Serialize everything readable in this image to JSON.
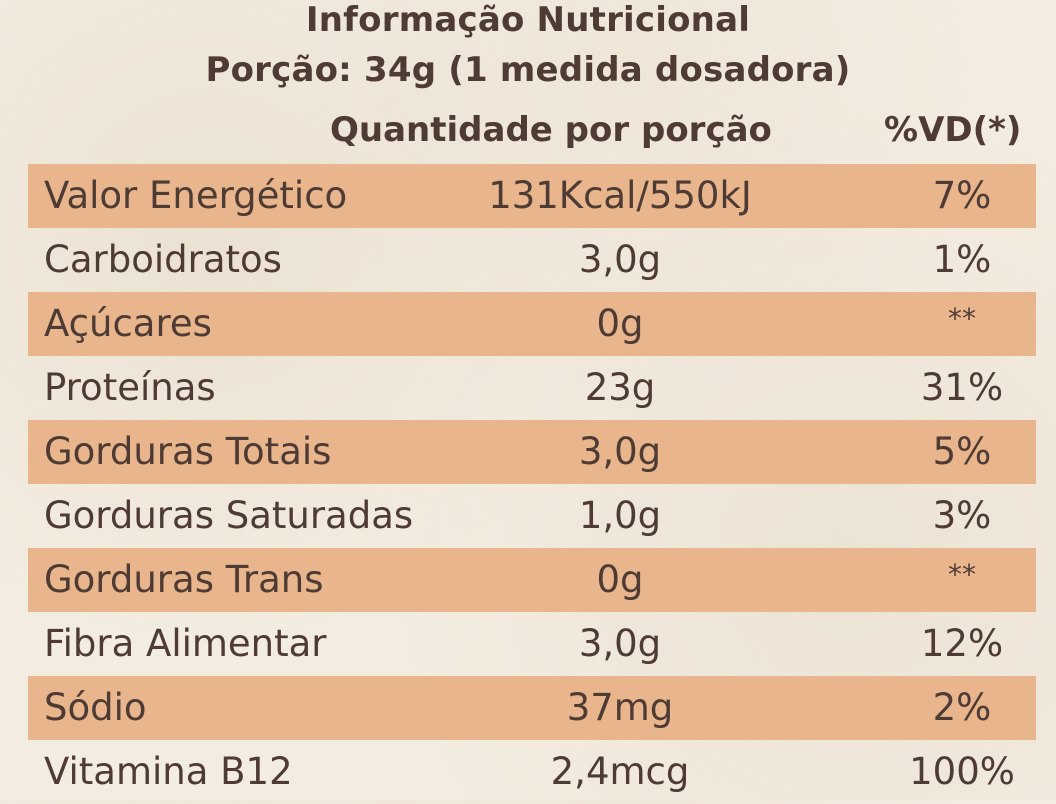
{
  "header": {
    "title_line_1": "Informação Nutricional",
    "title_line_2": "Porção: 34g (1 medida dosadora)",
    "quantity_heading": "Quantidade por porção",
    "vd_heading": "%VD(*)"
  },
  "colors": {
    "background": "#f3ece0",
    "band": "#e8b58c",
    "text": "#4d3b34"
  },
  "rows": [
    {
      "name": "Valor Energético",
      "quantity": "131Kcal/550kJ",
      "vd": "7%"
    },
    {
      "name": "Carboidratos",
      "quantity": "3,0g",
      "vd": "1%"
    },
    {
      "name": "Açúcares",
      "quantity": "0g",
      "vd": "**"
    },
    {
      "name": "Proteínas",
      "quantity": "23g",
      "vd": "31%"
    },
    {
      "name": "Gorduras Totais",
      "quantity": "3,0g",
      "vd": "5%"
    },
    {
      "name": "Gorduras Saturadas",
      "quantity": "1,0g",
      "vd": "3%"
    },
    {
      "name": "Gorduras Trans",
      "quantity": "0g",
      "vd": "**"
    },
    {
      "name": "Fibra Alimentar",
      "quantity": "3,0g",
      "vd": "12%"
    },
    {
      "name": "Sódio",
      "quantity": "37mg",
      "vd": "2%"
    },
    {
      "name": "Vitamina B12",
      "quantity": "2,4mcg",
      "vd": "100%"
    }
  ]
}
